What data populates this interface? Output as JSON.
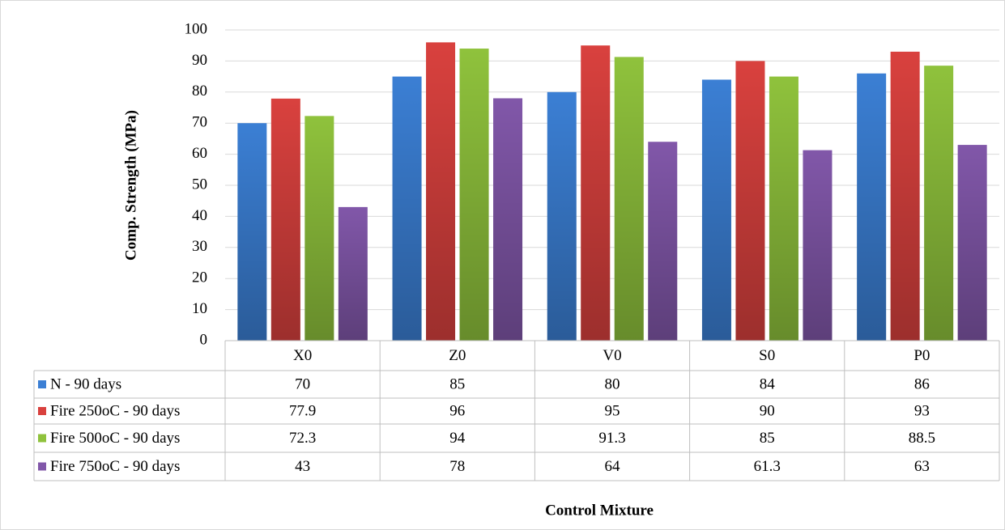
{
  "chart_data": {
    "type": "bar",
    "y_label": "Comp. Strength (MPa)",
    "x_label": "Control Mixture",
    "categories": [
      "X0",
      "Z0",
      "V0",
      "S0",
      "P0"
    ],
    "series": [
      {
        "name": "N - 90 days",
        "color": "#3b7fd4",
        "values": [
          70,
          85,
          80,
          84,
          86
        ]
      },
      {
        "name": "Fire 250oC - 90 days",
        "color": "#d9413e",
        "values": [
          77.9,
          96,
          95,
          90,
          93
        ]
      },
      {
        "name": "Fire 500oC - 90 days",
        "color": "#8fc23c",
        "values": [
          72.3,
          94,
          91.3,
          85,
          88.5
        ]
      },
      {
        "name": "Fire 750oC - 90 days",
        "color": "#8157a9",
        "values": [
          43,
          78,
          64,
          61.3,
          63
        ]
      }
    ],
    "ylim": [
      0,
      100
    ],
    "yticks": [
      0,
      10,
      20,
      30,
      40,
      50,
      60,
      70,
      80,
      90,
      100
    ],
    "grid": true
  }
}
